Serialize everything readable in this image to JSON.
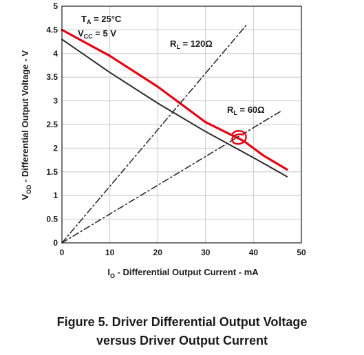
{
  "chart_data": {
    "type": "line",
    "x_axis": {
      "label_main": "I",
      "label_sub": "O",
      "label_rest": " - Differential Output Current - mA",
      "range": [
        0,
        50
      ],
      "ticks": [
        0,
        10,
        20,
        30,
        40,
        50
      ]
    },
    "y_axis": {
      "label_main": "V",
      "label_sub": "OD",
      "label_rest": " - Differential Output Voltage - V",
      "range": [
        0,
        5
      ],
      "ticks": [
        0,
        0.5,
        1,
        1.5,
        2,
        2.5,
        3,
        3.5,
        4,
        4.5,
        5
      ],
      "tick_labels": [
        "0",
        "0.5",
        "1",
        "1.5",
        "2",
        "2.5",
        "3",
        "3.5",
        "4",
        "4.5",
        "5"
      ]
    },
    "grid": true,
    "conditions": {
      "ta": {
        "main": "T",
        "sub": "A",
        "rest": " = 25°C"
      },
      "vcc": {
        "main": "V",
        "sub": "CC",
        "rest": " = 5 V"
      }
    },
    "series": [
      {
        "style": "solid",
        "color": "#2a2a2a",
        "points": [
          [
            0,
            4.3
          ],
          [
            10,
            3.6
          ],
          [
            20,
            2.95
          ],
          [
            30,
            2.35
          ],
          [
            40,
            1.8
          ],
          [
            47,
            1.4
          ]
        ]
      },
      {
        "style": "solid",
        "color": "#e60012",
        "points": [
          [
            0,
            4.5
          ],
          [
            10,
            3.95
          ],
          [
            20,
            3.3
          ],
          [
            30,
            2.55
          ],
          [
            35,
            2.3
          ],
          [
            38,
            2.15
          ],
          [
            42,
            1.85
          ],
          [
            47,
            1.55
          ]
        ]
      },
      {
        "name": {
          "main": "R",
          "sub": "L",
          "rest": " = 120Ω"
        },
        "style": "dashdot",
        "color": "#2a2a2a",
        "points": [
          [
            0,
            0
          ],
          [
            38.5,
            4.6
          ]
        ]
      },
      {
        "name": {
          "main": "R",
          "sub": "L",
          "rest": " = 60Ω"
        },
        "style": "dashdot",
        "color": "#2a2a2a",
        "points": [
          [
            0,
            0
          ],
          [
            46,
            2.8
          ]
        ]
      }
    ],
    "marker": {
      "shape": "hand-drawn circle",
      "color": "#e60012",
      "x": 37,
      "y": 2.2
    }
  },
  "figure": {
    "caption_line1": "Figure 5. Driver Differential Output Voltage",
    "caption_line2": "versus Driver Output Current"
  }
}
